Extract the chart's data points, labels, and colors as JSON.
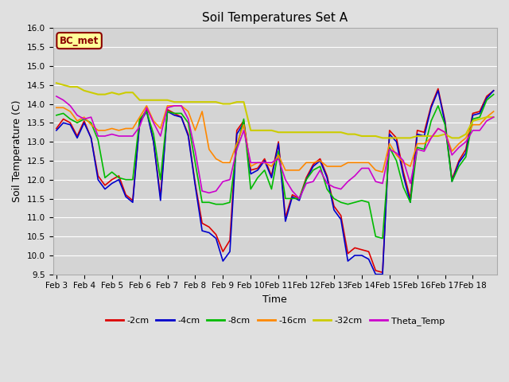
{
  "title": "Soil Temperatures Set A",
  "xlabel": "Time",
  "ylabel": "Soil Temperature (C)",
  "ylim": [
    9.5,
    16.0
  ],
  "fig_bg": "#e0e0e0",
  "ax_bg": "#d4d4d4",
  "annotation_text": "BC_met",
  "annotation_bg": "#ffff99",
  "annotation_border": "#8b0000",
  "series_order": [
    "-2cm",
    "-4cm",
    "-8cm",
    "-16cm",
    "-32cm",
    "Theta_Temp"
  ],
  "series": {
    "-2cm": {
      "color": "#dd0000",
      "lw": 1.2
    },
    "-4cm": {
      "color": "#0000cc",
      "lw": 1.2
    },
    "-8cm": {
      "color": "#00bb00",
      "lw": 1.2
    },
    "-16cm": {
      "color": "#ff8800",
      "lw": 1.2
    },
    "-32cm": {
      "color": "#cccc00",
      "lw": 1.5
    },
    "Theta_Temp": {
      "color": "#cc00cc",
      "lw": 1.2
    }
  },
  "x_labels": [
    "Feb 3",
    "Feb 4",
    "Feb 5",
    "Feb 6",
    "Feb 7",
    "Feb 8",
    "Feb 9",
    "Feb 10",
    "Feb 11",
    "Feb 12",
    "Feb 13",
    "Feb 14",
    "Feb 15",
    "Feb 16",
    "Feb 17",
    "Feb 18"
  ],
  "tick_positions": [
    0,
    4,
    8,
    12,
    16,
    20,
    24,
    28,
    32,
    36,
    40,
    44,
    48,
    52,
    56,
    60
  ],
  "yticks": [
    9.5,
    10.0,
    10.5,
    11.0,
    11.5,
    12.0,
    12.5,
    13.0,
    13.5,
    14.0,
    14.5,
    15.0,
    15.5,
    16.0
  ],
  "data": {
    "-2cm": [
      13.35,
      13.6,
      13.5,
      13.15,
      13.55,
      13.1,
      12.1,
      11.85,
      12.0,
      12.1,
      11.6,
      11.45,
      13.55,
      13.85,
      13.0,
      11.55,
      13.85,
      13.75,
      13.65,
      13.2,
      11.9,
      10.85,
      10.75,
      10.55,
      10.1,
      10.4,
      13.3,
      13.55,
      12.25,
      12.3,
      12.55,
      12.1,
      13.0,
      11.0,
      11.6,
      11.5,
      12.05,
      12.4,
      12.55,
      12.1,
      11.3,
      11.05,
      10.05,
      10.2,
      10.15,
      10.1,
      9.6,
      9.55,
      13.3,
      13.1,
      12.2,
      11.5,
      13.3,
      13.25,
      13.95,
      14.4,
      13.55,
      12.0,
      12.5,
      12.8,
      13.75,
      13.8,
      14.2,
      14.35
    ],
    "-4cm": [
      13.3,
      13.5,
      13.45,
      13.1,
      13.5,
      13.1,
      12.0,
      11.75,
      11.9,
      12.0,
      11.55,
      11.4,
      13.5,
      13.8,
      13.0,
      11.45,
      13.8,
      13.7,
      13.65,
      13.15,
      11.85,
      10.65,
      10.6,
      10.45,
      9.85,
      10.1,
      13.2,
      13.5,
      12.15,
      12.25,
      12.5,
      12.05,
      12.95,
      10.9,
      11.55,
      11.45,
      12.0,
      12.35,
      12.5,
      12.05,
      11.2,
      10.95,
      9.85,
      10.0,
      10.0,
      9.9,
      9.5,
      9.5,
      13.2,
      13.0,
      12.1,
      11.4,
      13.2,
      13.15,
      13.9,
      14.35,
      13.5,
      11.95,
      12.45,
      12.7,
      13.7,
      13.75,
      14.15,
      14.35
    ],
    "-8cm": [
      13.7,
      13.75,
      13.6,
      13.5,
      13.6,
      13.5,
      13.05,
      12.05,
      12.2,
      12.05,
      12.0,
      12.0,
      13.6,
      13.8,
      13.2,
      12.0,
      13.8,
      13.75,
      13.75,
      13.5,
      12.45,
      11.4,
      11.4,
      11.35,
      11.35,
      11.4,
      12.85,
      13.6,
      11.75,
      12.05,
      12.25,
      11.75,
      12.75,
      11.5,
      11.5,
      11.5,
      12.0,
      12.25,
      12.35,
      11.75,
      11.5,
      11.4,
      11.35,
      11.4,
      11.45,
      11.4,
      10.5,
      10.45,
      12.85,
      12.5,
      11.8,
      11.4,
      12.85,
      12.8,
      13.55,
      13.95,
      13.45,
      11.95,
      12.35,
      12.6,
      13.6,
      13.65,
      14.1,
      14.25
    ],
    "-16cm": [
      13.9,
      13.9,
      13.8,
      13.55,
      13.65,
      13.45,
      13.3,
      13.3,
      13.35,
      13.3,
      13.35,
      13.35,
      13.65,
      13.95,
      13.55,
      13.35,
      13.95,
      13.95,
      13.95,
      13.8,
      13.3,
      13.8,
      12.8,
      12.55,
      12.45,
      12.45,
      12.95,
      13.45,
      12.35,
      12.45,
      12.45,
      12.35,
      12.65,
      12.25,
      12.25,
      12.25,
      12.45,
      12.45,
      12.5,
      12.35,
      12.35,
      12.35,
      12.45,
      12.45,
      12.45,
      12.45,
      12.25,
      12.2,
      12.95,
      12.65,
      12.45,
      12.35,
      12.95,
      12.95,
      13.1,
      13.35,
      13.25,
      12.75,
      12.95,
      13.1,
      13.45,
      13.45,
      13.65,
      13.8
    ],
    "-32cm": [
      14.55,
      14.5,
      14.45,
      14.45,
      14.35,
      14.3,
      14.25,
      14.25,
      14.3,
      14.25,
      14.3,
      14.3,
      14.1,
      14.1,
      14.1,
      14.1,
      14.1,
      14.05,
      14.05,
      14.05,
      14.05,
      14.05,
      14.05,
      14.05,
      14.0,
      14.0,
      14.05,
      14.05,
      13.3,
      13.3,
      13.3,
      13.3,
      13.25,
      13.25,
      13.25,
      13.25,
      13.25,
      13.25,
      13.25,
      13.25,
      13.25,
      13.25,
      13.2,
      13.2,
      13.15,
      13.15,
      13.15,
      13.1,
      13.1,
      13.1,
      13.1,
      13.1,
      13.15,
      13.15,
      13.15,
      13.15,
      13.2,
      13.1,
      13.1,
      13.2,
      13.55,
      13.6,
      13.65,
      13.65
    ],
    "Theta_Temp": [
      14.2,
      14.1,
      13.95,
      13.7,
      13.6,
      13.65,
      13.15,
      13.15,
      13.2,
      13.15,
      13.15,
      13.15,
      13.4,
      13.9,
      13.5,
      13.15,
      13.9,
      13.95,
      13.95,
      13.6,
      12.75,
      11.7,
      11.65,
      11.7,
      11.95,
      12.0,
      12.8,
      13.3,
      12.45,
      12.45,
      12.45,
      12.45,
      12.55,
      12.0,
      11.7,
      11.5,
      11.9,
      11.95,
      12.25,
      11.9,
      11.8,
      11.75,
      11.95,
      12.1,
      12.3,
      12.3,
      11.95,
      11.9,
      12.8,
      12.7,
      12.5,
      11.9,
      12.8,
      12.75,
      13.1,
      13.35,
      13.25,
      12.65,
      12.85,
      13.0,
      13.3,
      13.3,
      13.55,
      13.65
    ]
  },
  "n_points": 64
}
